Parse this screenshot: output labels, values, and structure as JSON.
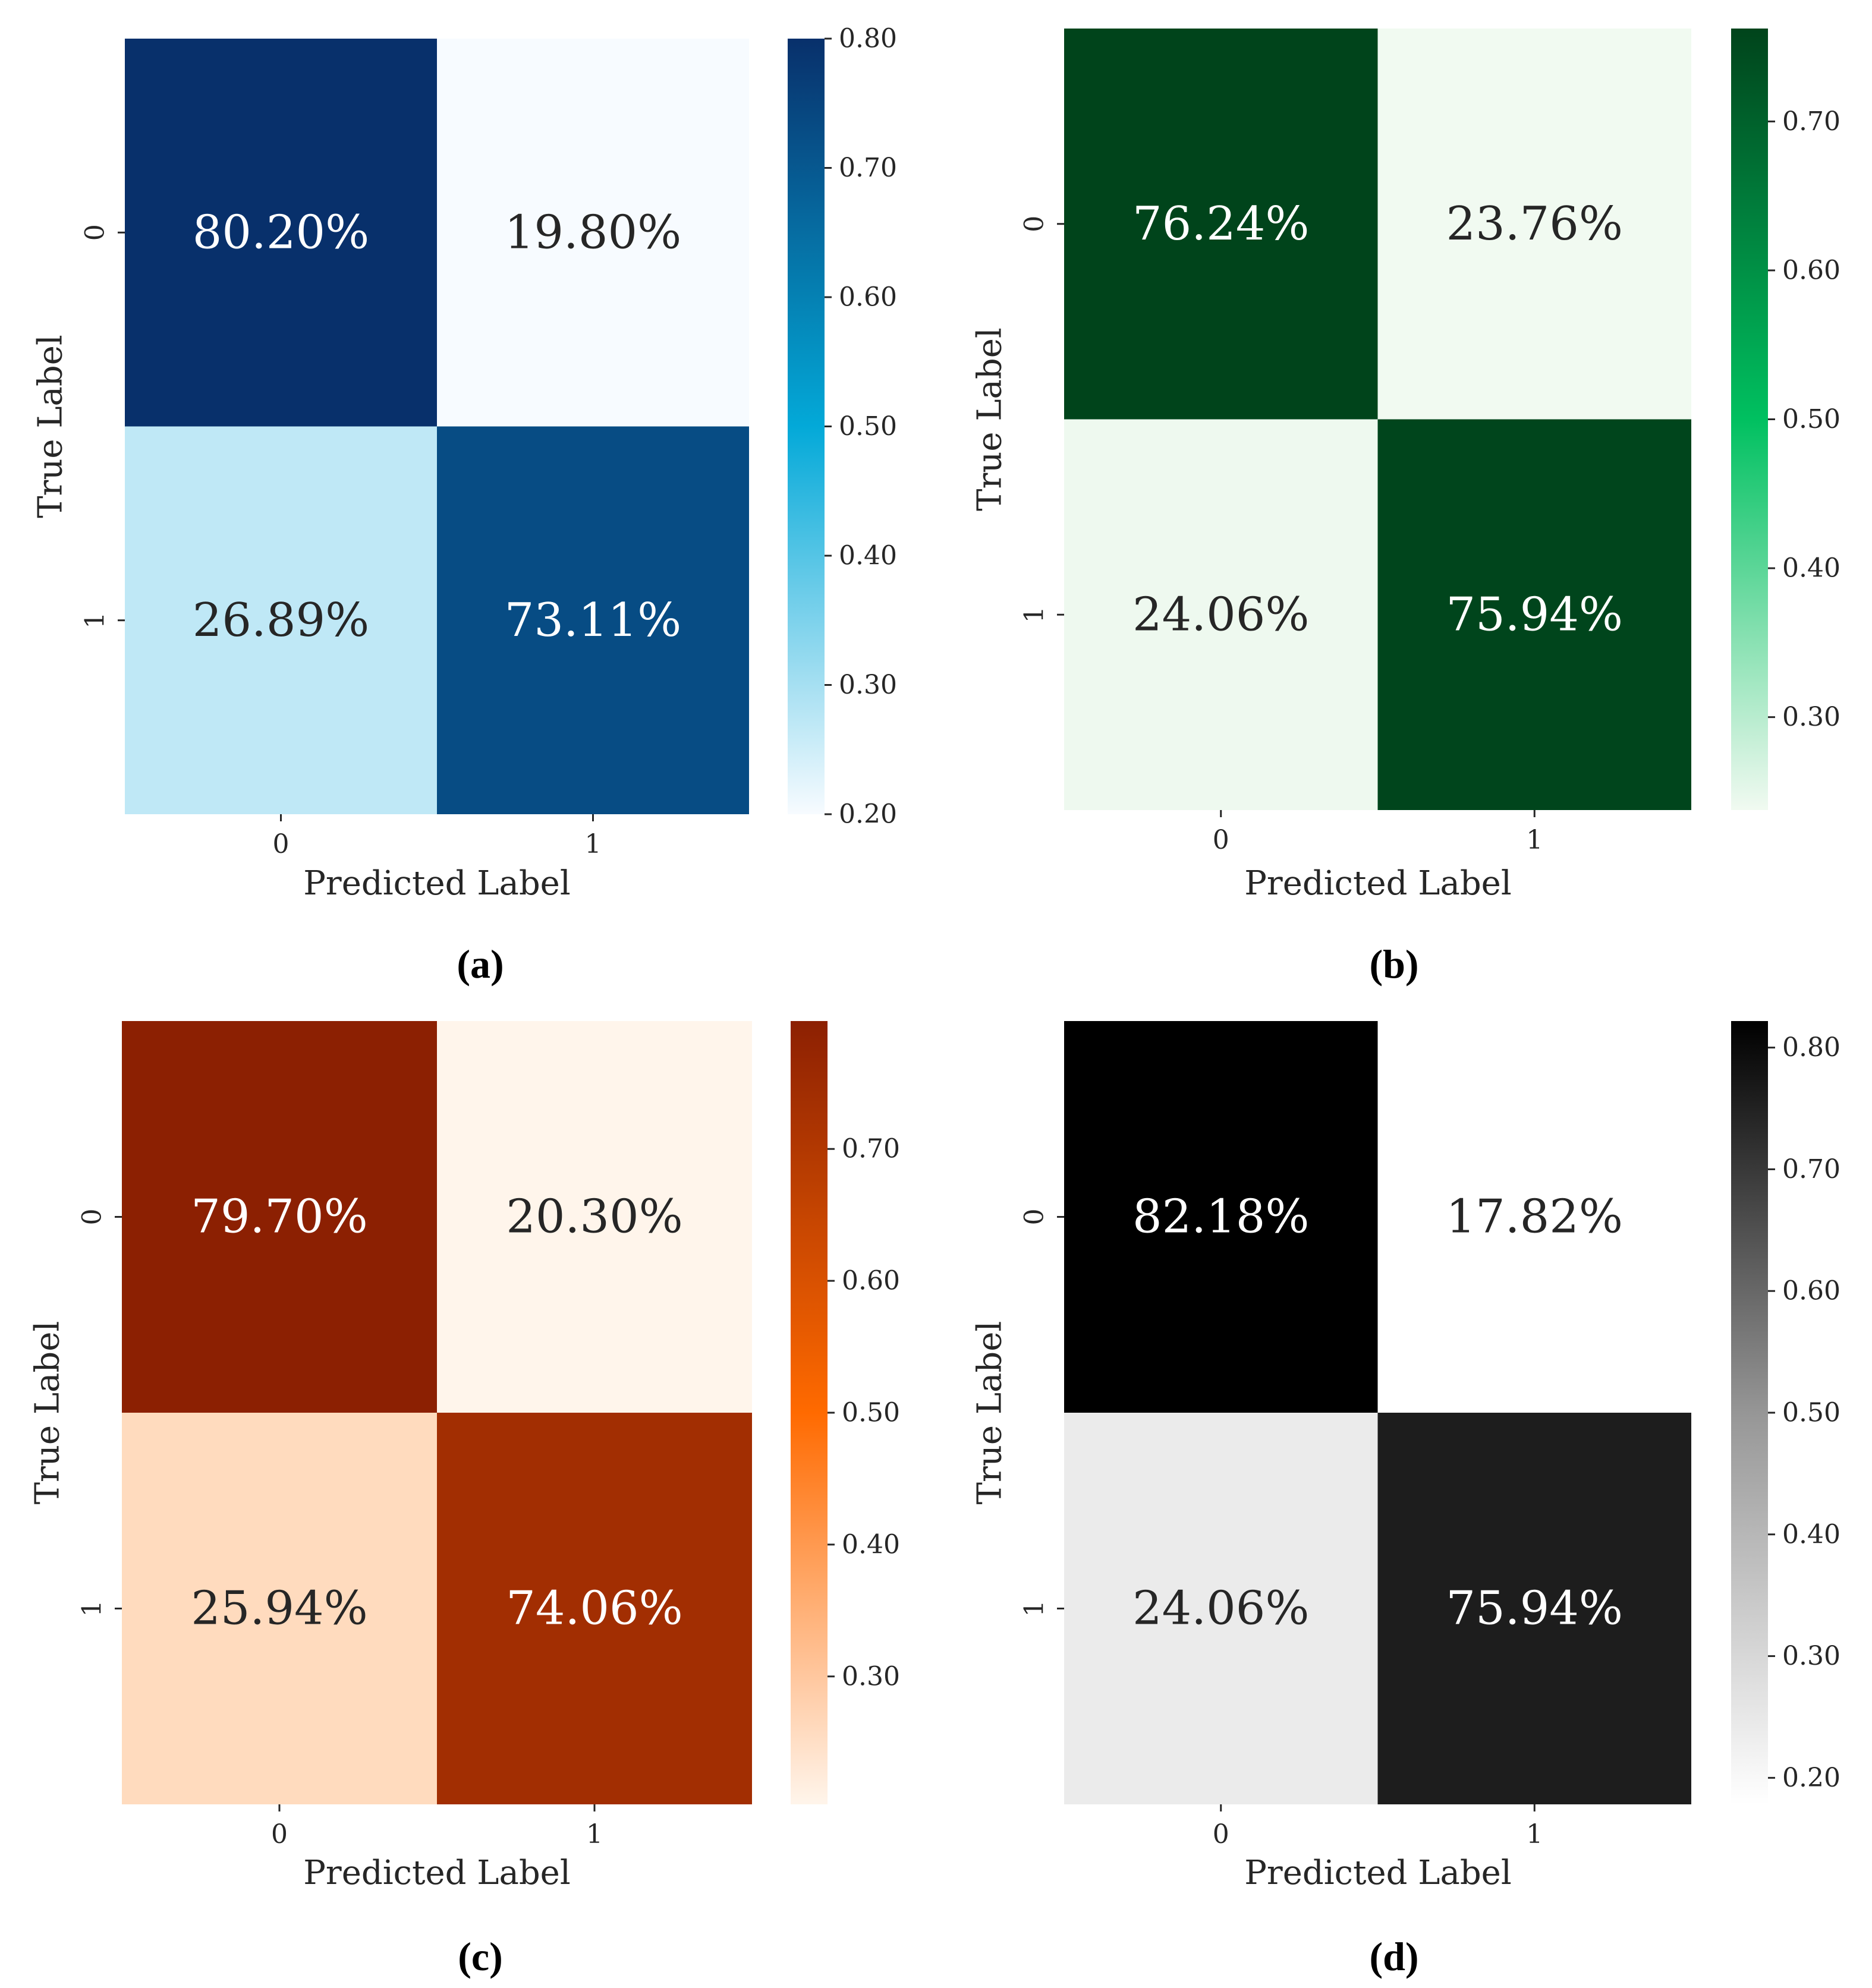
{
  "chart_data": [
    {
      "type": "heatmap",
      "caption": "(a)",
      "xlabel": "Predicted Label",
      "ylabel": "True Label",
      "x_ticklabels": [
        "0",
        "1"
      ],
      "y_ticklabels": [
        "0",
        "1"
      ],
      "values": [
        [
          0.802,
          0.198
        ],
        [
          0.2689,
          0.7311
        ]
      ],
      "annotations": [
        [
          "80.20%",
          "19.80%"
        ],
        [
          "26.89%",
          "73.11%"
        ]
      ],
      "colormap": "Blues",
      "colors": {
        "low": "#f7fbff",
        "mid": "#03a9d8",
        "high": "#08306b"
      },
      "colorbar": {
        "min": 0.2,
        "max": 0.8,
        "ticks": [
          "0.80",
          "0.70",
          "0.60",
          "0.50",
          "0.40",
          "0.30",
          "0.20"
        ]
      }
    },
    {
      "type": "heatmap",
      "caption": "(b)",
      "xlabel": "Predicted Label",
      "ylabel": "True Label",
      "x_ticklabels": [
        "0",
        "1"
      ],
      "y_ticklabels": [
        "0",
        "1"
      ],
      "values": [
        [
          0.7624,
          0.2376
        ],
        [
          0.2406,
          0.7594
        ]
      ],
      "annotations": [
        [
          "76.24%",
          "23.76%"
        ],
        [
          "24.06%",
          "75.94%"
        ]
      ],
      "colormap": "Greens",
      "colors": {
        "low": "#f1faf1",
        "mid": "#00c060",
        "high": "#00441b"
      },
      "colorbar": {
        "min": 0.2376,
        "max": 0.7624,
        "ticks": [
          "0.70",
          "0.60",
          "0.50",
          "0.40",
          "0.30"
        ]
      }
    },
    {
      "type": "heatmap",
      "caption": "(c)",
      "xlabel": "Predicted Label",
      "ylabel": "True Label",
      "x_ticklabels": [
        "0",
        "1"
      ],
      "y_ticklabels": [
        "0",
        "1"
      ],
      "values": [
        [
          0.797,
          0.203
        ],
        [
          0.2594,
          0.7406
        ]
      ],
      "annotations": [
        [
          "79.70%",
          "20.30%"
        ],
        [
          "25.94%",
          "74.06%"
        ]
      ],
      "colormap": "Oranges",
      "colors": {
        "low": "#fff5eb",
        "mid": "#ff6a00",
        "high": "#8c2002"
      },
      "colorbar": {
        "min": 0.203,
        "max": 0.797,
        "ticks": [
          "0.70",
          "0.60",
          "0.50",
          "0.40",
          "0.30"
        ]
      }
    },
    {
      "type": "heatmap",
      "caption": "(d)",
      "xlabel": "Predicted Label",
      "ylabel": "True Label",
      "x_ticklabels": [
        "0",
        "1"
      ],
      "y_ticklabels": [
        "0",
        "1"
      ],
      "values": [
        [
          0.8218,
          0.1782
        ],
        [
          0.2406,
          0.7594
        ]
      ],
      "annotations": [
        [
          "82.18%",
          "17.82%"
        ],
        [
          "24.06%",
          "75.94%"
        ]
      ],
      "colormap": "Greys",
      "colors": {
        "low": "#ffffff",
        "mid": "#969696",
        "high": "#000000"
      },
      "colorbar": {
        "min": 0.1782,
        "max": 0.8218,
        "ticks": [
          "0.80",
          "0.70",
          "0.60",
          "0.50",
          "0.40",
          "0.30",
          "0.20"
        ]
      }
    }
  ]
}
